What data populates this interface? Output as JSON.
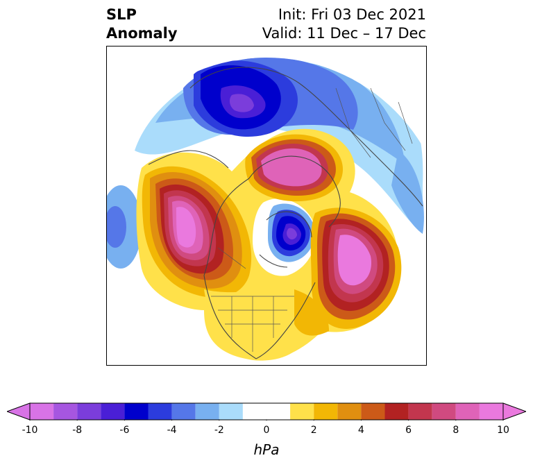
{
  "header": {
    "title_line1": "SLP",
    "title_line2": "Anomaly",
    "init_text": "Init: Fri 03 Dec 2021",
    "valid_text": "Valid: 11 Dec – 17 Dec"
  },
  "colorbar": {
    "unit_label": "hPa",
    "min": -10,
    "max": 10,
    "ticks": [
      "-10",
      "-8",
      "-6",
      "-4",
      "-2",
      "0",
      "2",
      "4",
      "6",
      "8",
      "10"
    ],
    "tick_values": [
      -10,
      -8,
      -6,
      -4,
      -2,
      0,
      2,
      4,
      6,
      8,
      10
    ],
    "bins": [
      {
        "from": -10,
        "to": -9,
        "color": "#d873e6"
      },
      {
        "from": -9,
        "to": -8,
        "color": "#a656e0"
      },
      {
        "from": -8,
        "to": -7,
        "color": "#7b3ddb"
      },
      {
        "from": -7,
        "to": -6,
        "color": "#4a1fd6"
      },
      {
        "from": -6,
        "to": -5,
        "color": "#0000cc"
      },
      {
        "from": -5,
        "to": -4,
        "color": "#2c3cdd"
      },
      {
        "from": -4,
        "to": -3,
        "color": "#5577e8"
      },
      {
        "from": -3,
        "to": -2,
        "color": "#78b0f0"
      },
      {
        "from": -2,
        "to": -1,
        "color": "#aadcfb"
      },
      {
        "from": -1,
        "to": 1,
        "color": "#ffffff"
      },
      {
        "from": 1,
        "to": 2,
        "color": "#ffe14a"
      },
      {
        "from": 2,
        "to": 3,
        "color": "#f2b705"
      },
      {
        "from": 3,
        "to": 4,
        "color": "#e08f10"
      },
      {
        "from": 4,
        "to": 5,
        "color": "#cc5a18"
      },
      {
        "from": 5,
        "to": 6,
        "color": "#b22222"
      },
      {
        "from": 6,
        "to": 7,
        "color": "#c2364e"
      },
      {
        "from": 7,
        "to": 8,
        "color": "#d04a80"
      },
      {
        "from": 8,
        "to": 9,
        "color": "#df63b8"
      },
      {
        "from": 9,
        "to": 10,
        "color": "#ea79de"
      }
    ],
    "underflow_color": "#d873e6",
    "overflow_color": "#ea79de"
  }
}
